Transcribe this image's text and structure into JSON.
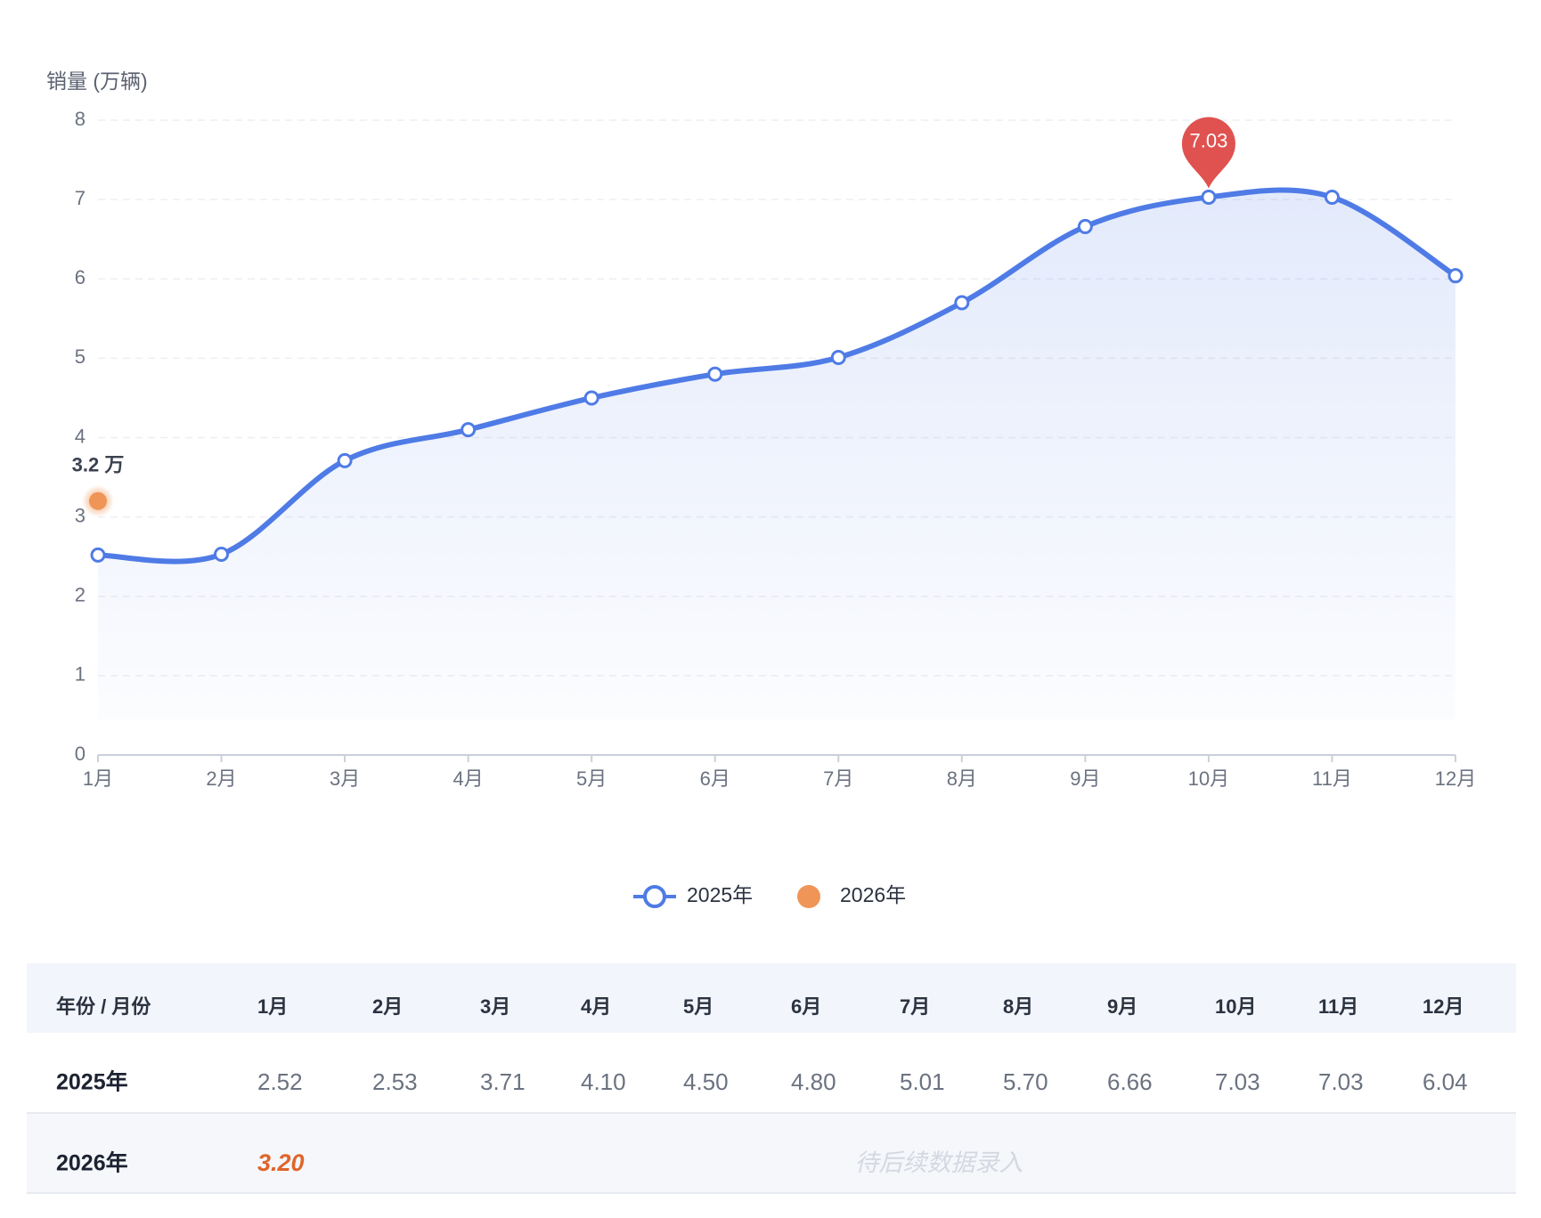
{
  "chart_data": {
    "type": "line",
    "y_axis_label": "销量 (万辆)",
    "categories": [
      "1月",
      "2月",
      "3月",
      "4月",
      "5月",
      "6月",
      "7月",
      "8月",
      "9月",
      "10月",
      "11月",
      "12月"
    ],
    "series": [
      {
        "name": "2025年",
        "color": "#4f7be6",
        "values": [
          2.52,
          2.53,
          3.71,
          4.1,
          4.5,
          4.8,
          5.01,
          5.7,
          6.66,
          7.03,
          7.03,
          6.04
        ]
      },
      {
        "name": "2026年",
        "color": "#ef9557",
        "values": [
          3.2,
          null,
          null,
          null,
          null,
          null,
          null,
          null,
          null,
          null,
          null,
          null
        ],
        "value_labels": [
          "3.2 万",
          null,
          null,
          null,
          null,
          null,
          null,
          null,
          null,
          null,
          null,
          null
        ]
      }
    ],
    "max_marker_color": "#e0524f",
    "ylim": [
      0,
      8
    ],
    "yticks": [
      0,
      1,
      2,
      3,
      4,
      5,
      6,
      7,
      8
    ],
    "grid": true,
    "legend": "bottom"
  },
  "table": {
    "header": [
      "年份 / 月份",
      "1月",
      "2月",
      "3月",
      "4月",
      "5月",
      "6月",
      "7月",
      "8月",
      "9月",
      "10月",
      "11月",
      "12月"
    ],
    "rows": [
      [
        "2025年",
        "2.52",
        "2.53",
        "3.71",
        "4.10",
        "4.50",
        "4.80",
        "5.01",
        "5.70",
        "6.66",
        "7.03",
        "7.03",
        "6.04"
      ],
      [
        "2026年",
        "3.20"
      ]
    ],
    "note": "待后续数据录入"
  }
}
